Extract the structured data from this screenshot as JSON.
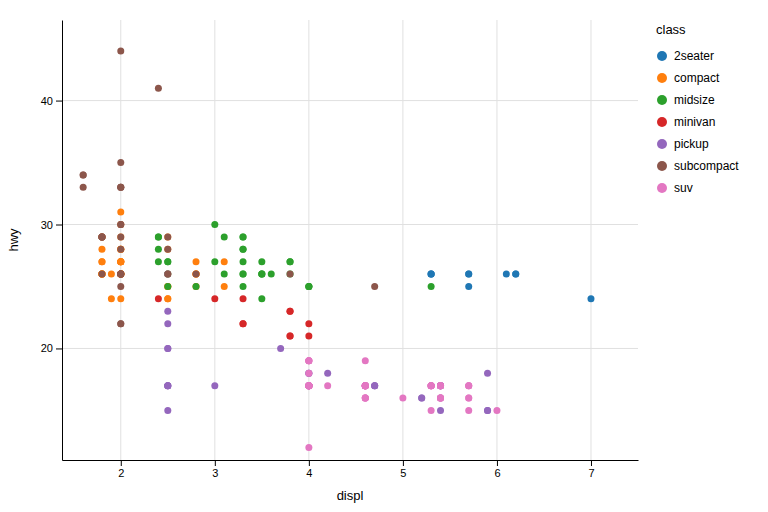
{
  "chart_data": {
    "type": "scatter",
    "xlabel": "displ",
    "ylabel": "hwy",
    "legend_title": "class",
    "legend": "right",
    "grid": true,
    "xlim": [
      1.375,
      7.5
    ],
    "ylim": [
      11,
      46.5
    ],
    "xticks": [
      2,
      3,
      4,
      5,
      6,
      7
    ],
    "yticks": [
      20,
      30,
      40
    ],
    "series": [
      {
        "name": "2seater",
        "x": [
          5.7,
          5.7,
          6.1,
          5.3,
          5.3,
          5.3,
          5.7,
          6.2,
          6.2,
          7.0
        ],
        "values": [
          26,
          26,
          26,
          26,
          26,
          26,
          25,
          26,
          26,
          24
        ]
      },
      {
        "name": "compact",
        "x": [
          1.8,
          1.8,
          2.0,
          2.0,
          2.8,
          2.8,
          3.1,
          1.8,
          1.8,
          2.0,
          2.0,
          2.0,
          2.0,
          2.8,
          1.9,
          2.0,
          2.0,
          2.0,
          2.5,
          2.5,
          1.8,
          1.8,
          2.0,
          2.0,
          2.5,
          2.5,
          2.8,
          3.1,
          1.8,
          1.8,
          2.0,
          2.0,
          2.0,
          2.0,
          2.8,
          1.8,
          1.9,
          2.0,
          2.0,
          2.5,
          2.5,
          1.8,
          2.0,
          2.0,
          2.0,
          2.5
        ],
        "values": [
          29,
          29,
          31,
          30,
          26,
          26,
          27,
          26,
          26,
          28,
          26,
          29,
          28,
          27,
          24,
          24,
          26,
          27,
          28,
          25,
          28,
          27,
          26,
          27,
          25,
          24,
          25,
          25,
          26,
          26,
          27,
          28,
          26,
          26,
          26,
          26,
          26,
          26,
          26,
          29,
          26,
          27,
          27,
          26,
          27,
          24
        ]
      },
      {
        "name": "midsize",
        "x": [
          2.4,
          3.1,
          2.4,
          2.4,
          3.1,
          3.5,
          3.6,
          2.4,
          3.0,
          3.3,
          3.3,
          3.3,
          3.3,
          3.3,
          3.8,
          3.8,
          3.8,
          4.0,
          2.5,
          2.5,
          3.5,
          3.5,
          3.0,
          3.5,
          4.0,
          3.3,
          3.3,
          4.0,
          5.3,
          2.5,
          2.5,
          2.8,
          3.5,
          3.3
        ],
        "values": [
          29,
          29,
          28,
          29,
          26,
          26,
          26,
          27,
          30,
          28,
          28,
          26,
          26,
          29,
          27,
          27,
          26,
          25,
          27,
          27,
          26,
          26,
          27,
          27,
          25,
          29,
          27,
          25,
          25,
          26,
          25,
          25,
          24,
          25
        ]
      },
      {
        "name": "minivan",
        "x": [
          2.4,
          3.0,
          3.3,
          3.3,
          3.8,
          3.8,
          4.0,
          3.3,
          3.8,
          3.8,
          4.0
        ],
        "values": [
          24,
          24,
          22,
          22,
          21,
          21,
          21,
          24,
          23,
          23,
          22
        ]
      },
      {
        "name": "pickup",
        "x": [
          2.5,
          2.5,
          2.5,
          2.5,
          2.5,
          2.5,
          2.5,
          2.5,
          2.5,
          2.5,
          3.0,
          3.7,
          4.0,
          4.7,
          4.7,
          4.7,
          5.2,
          5.2,
          5.9,
          5.9,
          4.0,
          4.2,
          5.9,
          4.6,
          5.4,
          5.4,
          4.0,
          4.0,
          4.0,
          4.0,
          5.4,
          5.4,
          5.4,
          5.4
        ],
        "values": [
          20,
          15,
          20,
          17,
          17,
          26,
          23,
          22,
          17,
          17,
          17,
          20,
          18,
          17,
          17,
          17,
          16,
          16,
          15,
          15,
          18,
          18,
          18,
          17,
          17,
          15,
          17,
          17,
          17,
          17,
          17,
          17,
          16,
          17
        ]
      },
      {
        "name": "subcompact",
        "x": [
          1.8,
          1.8,
          1.8,
          1.8,
          1.8,
          2.0,
          2.0,
          2.0,
          2.0,
          1.6,
          2.0,
          2.0,
          2.0,
          2.0,
          2.0,
          2.4,
          2.5,
          2.5,
          1.6,
          1.6,
          2.0,
          2.0,
          2.0,
          2.0,
          2.5,
          2.8,
          3.8,
          4.7,
          2.0,
          2.0,
          2.0,
          2.0
        ],
        "values": [
          29,
          29,
          29,
          29,
          26,
          26,
          26,
          26,
          25,
          34,
          33,
          33,
          33,
          35,
          44,
          41,
          29,
          26,
          33,
          34,
          30,
          30,
          22,
          22,
          28,
          26,
          26,
          25,
          28,
          29,
          26,
          26
        ]
      },
      {
        "name": "suv",
        "x": [
          4.0,
          4.0,
          4.0,
          4.0,
          4.6,
          4.6,
          4.6,
          4.6,
          5.4,
          5.4,
          5.4,
          4.0,
          4.0,
          4.6,
          5.0,
          4.2,
          5.3,
          5.3,
          5.3,
          5.7,
          6.0,
          5.3,
          5.3,
          5.3,
          5.7,
          5.3,
          4.6,
          4.6,
          5.4,
          5.4,
          4.0,
          4.0,
          4.0,
          4.6,
          5.7,
          5.7,
          4.0,
          4.0,
          4.0,
          4.6,
          4.6,
          4.6,
          5.7,
          5.7,
          4.0,
          4.0,
          4.0,
          4.0,
          4.6,
          4.6,
          4.6,
          4.6,
          4.6,
          4.6,
          5.4,
          5.4,
          5.4,
          5.4,
          4.0,
          4.0,
          4.0,
          4.0,
          4.0
        ],
        "values": [
          19,
          19,
          17,
          17,
          17,
          16,
          17,
          17,
          17,
          17,
          16,
          17,
          18,
          16,
          16,
          17,
          17,
          17,
          17,
          16,
          15,
          17,
          17,
          17,
          16,
          15,
          17,
          17,
          16,
          17,
          17,
          17,
          17,
          16,
          15,
          17,
          19,
          19,
          17,
          19,
          17,
          17,
          17,
          17,
          17,
          17,
          17,
          17,
          17,
          17,
          17,
          17,
          17,
          16,
          16,
          17,
          17,
          16,
          17,
          17,
          17,
          17,
          12
        ]
      }
    ]
  }
}
